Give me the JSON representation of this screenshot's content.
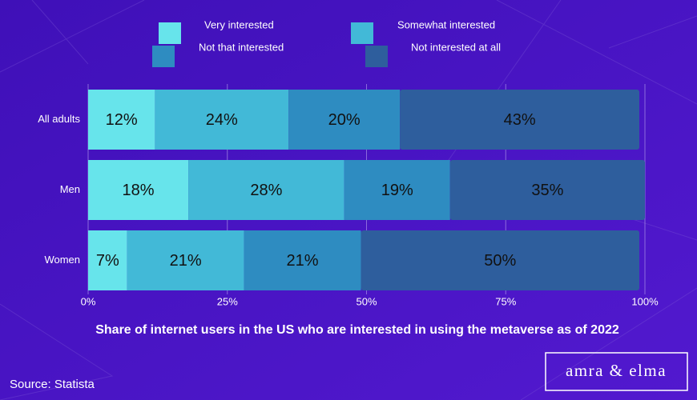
{
  "chart_data": {
    "type": "stacked_bar_horizontal",
    "title": "Share of internet users in the US who are interested in using the metaverse as of 2022",
    "source": "Source: Statista",
    "logo": "amra & elma",
    "categories": [
      "All adults",
      "Men",
      "Women"
    ],
    "series": [
      {
        "name": "Very interested",
        "color": "#67e4eb",
        "values": [
          12,
          18,
          7
        ],
        "value_labels": [
          "12%",
          "18%",
          "7%"
        ]
      },
      {
        "name": "Somewhat interested",
        "color": "#42b9d7",
        "values": [
          24,
          28,
          21
        ],
        "value_labels": [
          "24%",
          "28%",
          "21%"
        ]
      },
      {
        "name": "Not that interested",
        "color": "#2e8cc1",
        "values": [
          20,
          19,
          21
        ],
        "value_labels": [
          "20%",
          "19%",
          "21%"
        ]
      },
      {
        "name": "Not interested at all",
        "color": "#2e5e9d",
        "values": [
          43,
          35,
          50
        ],
        "value_labels": [
          "43%",
          "35%",
          "50%"
        ]
      }
    ],
    "xlim": [
      0,
      100
    ],
    "xticks": [
      {
        "value": 0,
        "label": "0%"
      },
      {
        "value": 25,
        "label": "25%"
      },
      {
        "value": 50,
        "label": "50%"
      },
      {
        "value": 75,
        "label": "75%"
      },
      {
        "value": 100,
        "label": "100%"
      }
    ],
    "grid": true
  }
}
